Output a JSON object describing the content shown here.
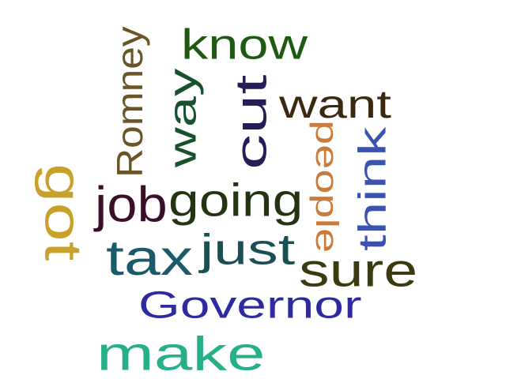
{
  "words": [
    {
      "text": "make",
      "color": "#25b08a",
      "orientation": "horizontal"
    },
    {
      "text": "Governor",
      "color": "#2e2aa0",
      "orientation": "horizontal"
    },
    {
      "text": "tax",
      "color": "#1b5a6a",
      "orientation": "horizontal"
    },
    {
      "text": "sure",
      "color": "#3a3a0e",
      "orientation": "horizontal"
    },
    {
      "text": "just",
      "color": "#1a4f56",
      "orientation": "horizontal"
    },
    {
      "text": "going",
      "color": "#243311",
      "orientation": "horizontal"
    },
    {
      "text": "job",
      "color": "#3a0f2a",
      "orientation": "horizontal"
    },
    {
      "text": "want",
      "color": "#3b2810",
      "orientation": "horizontal"
    },
    {
      "text": "know",
      "color": "#1f5a12",
      "orientation": "horizontal"
    },
    {
      "text": "got",
      "color": "#c8a12a",
      "orientation": "rotated-90"
    },
    {
      "text": "Romney",
      "color": "#6a5526",
      "orientation": "rotated-270"
    },
    {
      "text": "way",
      "color": "#17512e",
      "orientation": "rotated-270"
    },
    {
      "text": "cut",
      "color": "#261d58",
      "orientation": "rotated-270"
    },
    {
      "text": "people",
      "color": "#c97b3c",
      "orientation": "rotated-90"
    },
    {
      "text": "think",
      "color": "#3a52b0",
      "orientation": "rotated-270"
    }
  ]
}
